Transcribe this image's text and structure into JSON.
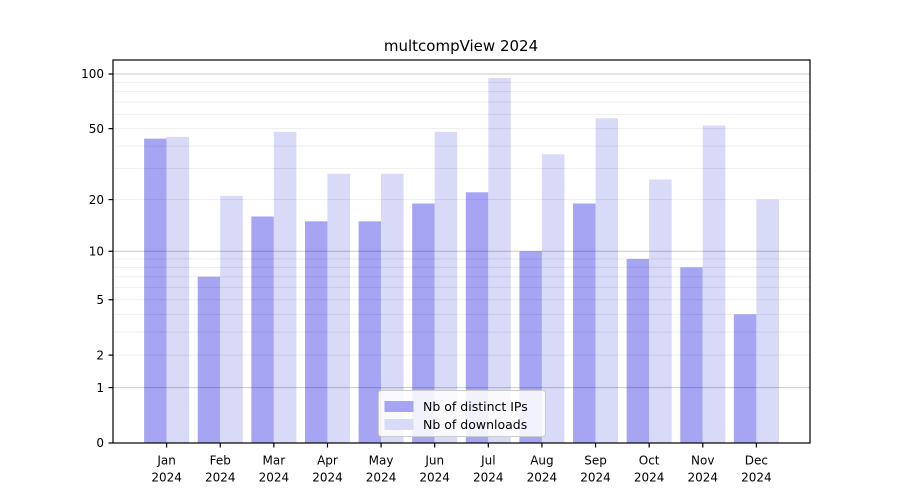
{
  "chart_data": {
    "type": "bar",
    "title": "multcompView 2024",
    "yscale": "log1p",
    "ylim": [
      0,
      110
    ],
    "grid": "on",
    "legend_position": "lower center",
    "categories": [
      "Jan",
      "Feb",
      "Mar",
      "Apr",
      "May",
      "Jun",
      "Jul",
      "Aug",
      "Sep",
      "Oct",
      "Nov",
      "Dec"
    ],
    "x_tick_year": "2024",
    "x_tick_labels": [
      [
        "Jan",
        "2024"
      ],
      [
        "Feb",
        "2024"
      ],
      [
        "Mar",
        "2024"
      ],
      [
        "Apr",
        "2024"
      ],
      [
        "May",
        "2024"
      ],
      [
        "Jun",
        "2024"
      ],
      [
        "Jul",
        "2024"
      ],
      [
        "Aug",
        "2024"
      ],
      [
        "Sep",
        "2024"
      ],
      [
        "Oct",
        "2024"
      ],
      [
        "Nov",
        "2024"
      ],
      [
        "Dec",
        "2024"
      ]
    ],
    "y_ticks": [
      {
        "label": "100",
        "value": 100
      },
      {
        "label": "50",
        "value": 50
      },
      {
        "label": "20",
        "value": 20
      },
      {
        "label": "10",
        "value": 10
      },
      {
        "label": "5",
        "value": 5
      },
      {
        "label": "2",
        "value": 2
      },
      {
        "label": "1",
        "value": 1
      },
      {
        "label": "0",
        "value": 0
      }
    ],
    "grid_major_at": [
      1,
      10,
      100
    ],
    "grid_minor_at": [
      2,
      3,
      4,
      5,
      6,
      7,
      8,
      9,
      20,
      30,
      40,
      50,
      60,
      70,
      80,
      90
    ],
    "series": [
      {
        "name": "Nb of distinct IPs",
        "color": "#a5a5f3",
        "values": [
          44,
          7,
          16,
          15,
          15,
          19,
          22,
          10,
          19,
          9,
          8,
          4
        ]
      },
      {
        "name": "Nb of downloads",
        "color": "#d9d9f8",
        "values": [
          45,
          21,
          48,
          28,
          28,
          48,
          95,
          36,
          57,
          26,
          52,
          20
        ]
      }
    ]
  },
  "style_colors": {
    "axis": "#000000",
    "grid_major": "#c9c9c9",
    "grid_minor": "#ededed",
    "legend_border": "#cccccc",
    "legend_background": "#ffffff"
  }
}
